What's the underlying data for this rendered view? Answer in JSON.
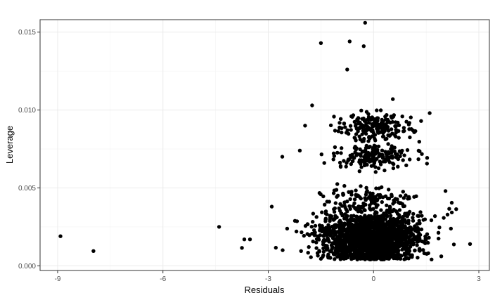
{
  "chart_data": {
    "type": "scatter",
    "xlabel": "Residuals",
    "ylabel": "Leverage",
    "xlim": [
      -9.5,
      3.3
    ],
    "ylim": [
      -0.0003,
      0.0158
    ],
    "x_ticks": [
      -9,
      -6,
      -3,
      0,
      3
    ],
    "x_tick_labels": [
      "-9",
      "-6",
      "-3",
      "0",
      "3"
    ],
    "y_ticks": [
      0.0,
      0.005,
      0.01,
      0.015
    ],
    "y_tick_labels": [
      "0.000",
      "0.005",
      "0.010",
      "0.015"
    ],
    "grid": true,
    "point_color": "#000000",
    "grid_color": "#ebebeb",
    "highlighted_points": [
      {
        "x": -8.92,
        "y": 0.0019
      },
      {
        "x": -7.98,
        "y": 0.00095
      },
      {
        "x": -4.4,
        "y": 0.0025
      },
      {
        "x": -3.75,
        "y": 0.00115
      },
      {
        "x": -3.68,
        "y": 0.0017
      },
      {
        "x": -3.52,
        "y": 0.0017
      },
      {
        "x": -2.9,
        "y": 0.0038
      },
      {
        "x": -2.6,
        "y": 0.007
      },
      {
        "x": -1.5,
        "y": 0.0143
      },
      {
        "x": -0.68,
        "y": 0.0144
      },
      {
        "x": -0.28,
        "y": 0.0141
      },
      {
        "x": -0.24,
        "y": 0.0156
      },
      {
        "x": -0.75,
        "y": 0.0126
      },
      {
        "x": -1.75,
        "y": 0.0103
      },
      {
        "x": 2.05,
        "y": 0.0048
      },
      {
        "x": 2.75,
        "y": 0.0014
      },
      {
        "x": 1.6,
        "y": 0.0098
      },
      {
        "x": 0.55,
        "y": 0.0107
      },
      {
        "x": -1.95,
        "y": 0.009
      },
      {
        "x": -2.1,
        "y": 0.0074
      }
    ],
    "clusters": [
      {
        "x_center": -0.1,
        "y_center": 0.0017,
        "x_spread": 0.85,
        "y_spread": 0.0008,
        "count": 1400,
        "y_floor": 0.0004
      },
      {
        "x_center": -0.05,
        "y_center": 0.0022,
        "x_spread": 1.3,
        "y_spread": 0.0009,
        "count": 600,
        "y_floor": 0.0004
      },
      {
        "x_center": 0.0,
        "y_center": 0.007,
        "x_spread": 0.75,
        "y_spread": 0.00035,
        "count": 180,
        "y_floor": 0.006
      },
      {
        "x_center": 0.05,
        "y_center": 0.0089,
        "x_spread": 0.75,
        "y_spread": 0.00045,
        "count": 200,
        "y_floor": 0.0075
      },
      {
        "x_center": -0.1,
        "y_center": 0.0043,
        "x_spread": 0.9,
        "y_spread": 0.0004,
        "count": 80,
        "y_floor": 0.0035
      }
    ]
  }
}
